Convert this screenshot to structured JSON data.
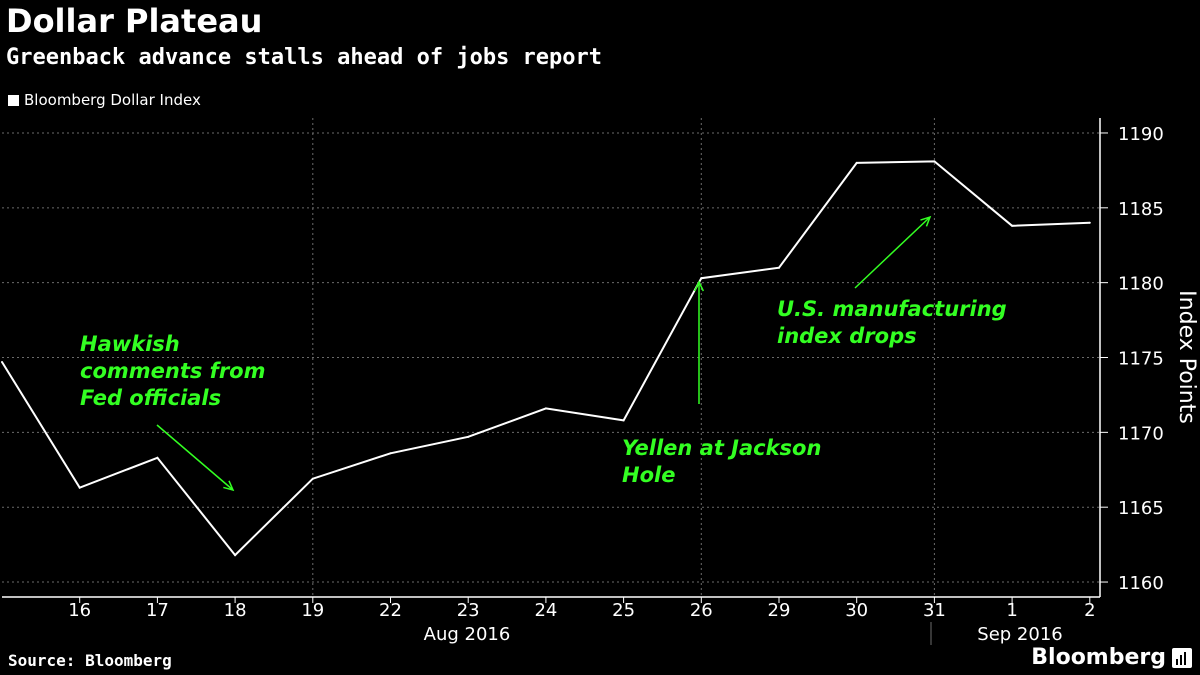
{
  "header": {
    "title": "Dollar Plateau",
    "subtitle": "Greenback advance stalls ahead of jobs report"
  },
  "legend": {
    "label": "Bloomberg Dollar Index"
  },
  "footer": {
    "source": "Source: Bloomberg",
    "brand": "Bloomberg"
  },
  "colors": {
    "background": "#000000",
    "line": "#ffffff",
    "annotation": "#33ff22",
    "grid": "#6b6b6b"
  },
  "chart_data": {
    "type": "line",
    "title": "Dollar Plateau",
    "subtitle": "Greenback advance stalls ahead of jobs report",
    "ylabel": "Index Points",
    "ylim": [
      1159,
      1191
    ],
    "yticks": [
      1160,
      1165,
      1170,
      1175,
      1180,
      1185,
      1190
    ],
    "grid": true,
    "legend_position": "top-left",
    "x": [
      "2016-08-15",
      "2016-08-16",
      "2016-08-17",
      "2016-08-18",
      "2016-08-19",
      "2016-08-22",
      "2016-08-23",
      "2016-08-24",
      "2016-08-25",
      "2016-08-26",
      "2016-08-29",
      "2016-08-30",
      "2016-08-31",
      "2016-09-01",
      "2016-09-02"
    ],
    "tick_labels": [
      "16",
      "17",
      "18",
      "19",
      "22",
      "23",
      "24",
      "25",
      "26",
      "29",
      "30",
      "31",
      "1",
      "2"
    ],
    "month_labels": [
      "Aug 2016",
      "Sep 2016"
    ],
    "series": [
      {
        "name": "Bloomberg Dollar Index",
        "values": [
          1174.7,
          1166.3,
          1168.3,
          1161.8,
          1166.9,
          1168.6,
          1169.7,
          1171.6,
          1170.8,
          1180.3,
          1181.0,
          1188.0,
          1188.1,
          1183.8,
          1184.0
        ]
      }
    ],
    "annotations": [
      {
        "text": "Hawkish comments from Fed officials",
        "lines": [
          "Hawkish",
          "comments from",
          "Fed officials"
        ],
        "target": "2016-08-18"
      },
      {
        "text": "Yellen at Jackson Hole",
        "lines": [
          "Yellen at Jackson",
          "Hole"
        ],
        "target": "2016-08-26"
      },
      {
        "text": "U.S. manufacturing index drops",
        "lines": [
          "U.S. manufacturing",
          "index drops"
        ],
        "target": "2016-08-31"
      }
    ]
  }
}
